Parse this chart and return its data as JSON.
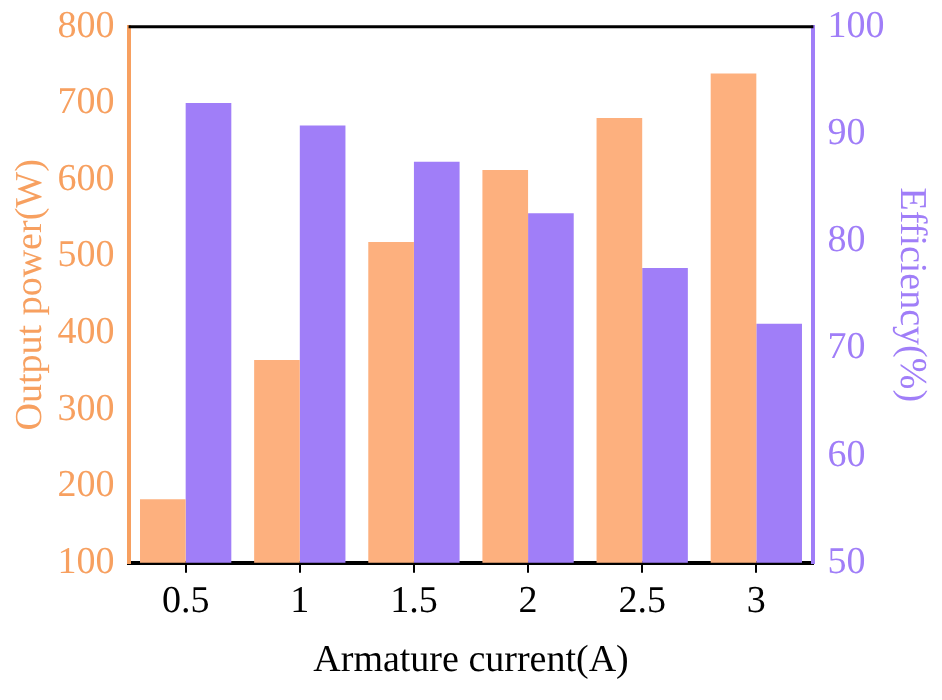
{
  "chart_data": {
    "type": "bar",
    "xlabel": "Armature current(A)",
    "ylabel": "Output power(W)",
    "y2label": "Efficiency(%)",
    "categories": [
      "0.5",
      "1",
      "1.5",
      "2",
      "2.5",
      "3"
    ],
    "series": [
      {
        "color": "#fdb07e",
        "values": [
          183,
          365,
          519,
          613,
          681,
          739
        ]
      },
      {
        "color": "#a07ef8",
        "axis": "y2",
        "values": [
          92.9,
          90.8,
          87.4,
          82.6,
          77.5,
          72.3
        ]
      }
    ],
    "ylim": [
      100,
      800
    ],
    "yticks": [
      100,
      200,
      300,
      400,
      500,
      600,
      700,
      800
    ],
    "y2lim": [
      50,
      100
    ],
    "y2ticks": [
      50,
      60,
      70,
      80,
      90,
      100
    ],
    "grid": false,
    "legend": false
  }
}
